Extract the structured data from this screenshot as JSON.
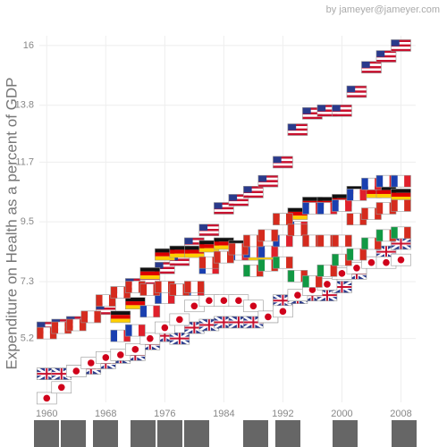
{
  "chart_data": {
    "type": "flag-scatter",
    "credit": "by jameyer@jameyer.com",
    "y_label": "Expenditure on Health as a percent of GDP",
    "x": [
      1960,
      1962,
      1964,
      1966,
      1968,
      1970,
      1972,
      1974,
      1976,
      1978,
      1980,
      1982,
      1984,
      1986,
      1988,
      1990,
      1992,
      1994,
      1996,
      1998,
      2000,
      2002,
      2004,
      2006,
      2008
    ],
    "xlim": [
      1959,
      2010
    ],
    "xticks": [
      1960,
      1968,
      1976,
      1984,
      1992,
      2000,
      2008
    ],
    "ylim": [
      2.85,
      16.36
    ],
    "yticks": [
      5.2,
      7.3,
      9.5,
      11.7,
      13.8,
      16.0
    ],
    "grid": true,
    "series": [
      {
        "flag": "horizontal",
        "colors": [
          "#c8102e",
          "#ffffff",
          "#c8102e",
          "#ffffff",
          "#c8102e"
        ],
        "canton": "#2a3a8c",
        "values": [
          5.6,
          5.7,
          5.8,
          6.0,
          6.3,
          6.9,
          7.2,
          7.4,
          7.8,
          8.1,
          8.7,
          9.2,
          10.0,
          10.3,
          10.6,
          11.0,
          11.7,
          12.9,
          13.5,
          13.6,
          13.6,
          14.3,
          15.2,
          15.6,
          16.0
        ]
      },
      {
        "flag": "cross",
        "colors": [
          "#2a3a8c",
          "#ffffff",
          "#c8102e"
        ],
        "values": [
          3.9,
          3.9,
          4.0,
          4.1,
          4.3,
          4.5,
          4.6,
          5.0,
          5.3,
          5.2,
          5.6,
          5.7,
          5.8,
          5.8,
          5.8,
          6.0,
          6.6,
          6.7,
          6.8,
          6.8,
          7.1,
          7.6,
          8.0,
          8.4,
          8.7
        ]
      },
      {
        "flag": "disc",
        "colors": [
          "#ffffff",
          "#d0021b"
        ],
        "values": [
          3.0,
          3.4,
          4.0,
          4.3,
          4.5,
          4.6,
          4.8,
          5.2,
          5.6,
          5.9,
          6.4,
          6.6,
          6.6,
          6.6,
          6.4,
          6.0,
          6.2,
          6.8,
          7.0,
          7.2,
          7.6,
          7.8,
          8.0,
          8.0,
          8.1
        ]
      },
      {
        "flag": "horizontal",
        "colors": [
          "#111111",
          "#dd0000",
          "#ffce00"
        ],
        "values": [
          null,
          null,
          null,
          null,
          null,
          6.0,
          6.5,
          7.6,
          8.3,
          8.4,
          8.4,
          8.6,
          8.7,
          8.6,
          8.3,
          8.3,
          9.6,
          9.8,
          10.2,
          10.2,
          10.3,
          10.6,
          10.6,
          10.6,
          10.5
        ]
      },
      {
        "flag": "vertical",
        "colors": [
          "#1a3fb0",
          "#ffffff",
          "#e0202b"
        ],
        "values": [
          null,
          null,
          null,
          null,
          null,
          5.3,
          5.5,
          6.2,
          6.7,
          7.0,
          7.0,
          7.8,
          8.2,
          8.3,
          8.4,
          8.4,
          8.8,
          9.3,
          10.0,
          10.0,
          10.1,
          10.5,
          10.9,
          11.0,
          11.0
        ]
      },
      {
        "flag": "vertical",
        "colors": [
          "#d52b1e",
          "#ffffff",
          "#d52b1e"
        ],
        "values": [
          5.4,
          5.6,
          5.7,
          6.0,
          6.6,
          6.9,
          7.1,
          7.0,
          7.1,
          7.0,
          7.1,
          8.0,
          8.2,
          8.5,
          8.8,
          9.0,
          9.6,
          9.2,
          8.8,
          8.8,
          8.8,
          9.6,
          9.8,
          10.0,
          10.1
        ]
      },
      {
        "flag": "vertical",
        "colors": [
          "#119944",
          "#ffffff",
          "#d52b1e"
        ],
        "values": [
          null,
          null,
          null,
          null,
          null,
          null,
          null,
          null,
          null,
          null,
          null,
          null,
          null,
          null,
          7.7,
          7.9,
          8.0,
          7.5,
          7.3,
          7.7,
          8.1,
          8.3,
          8.7,
          9.0,
          9.1
        ]
      }
    ]
  }
}
